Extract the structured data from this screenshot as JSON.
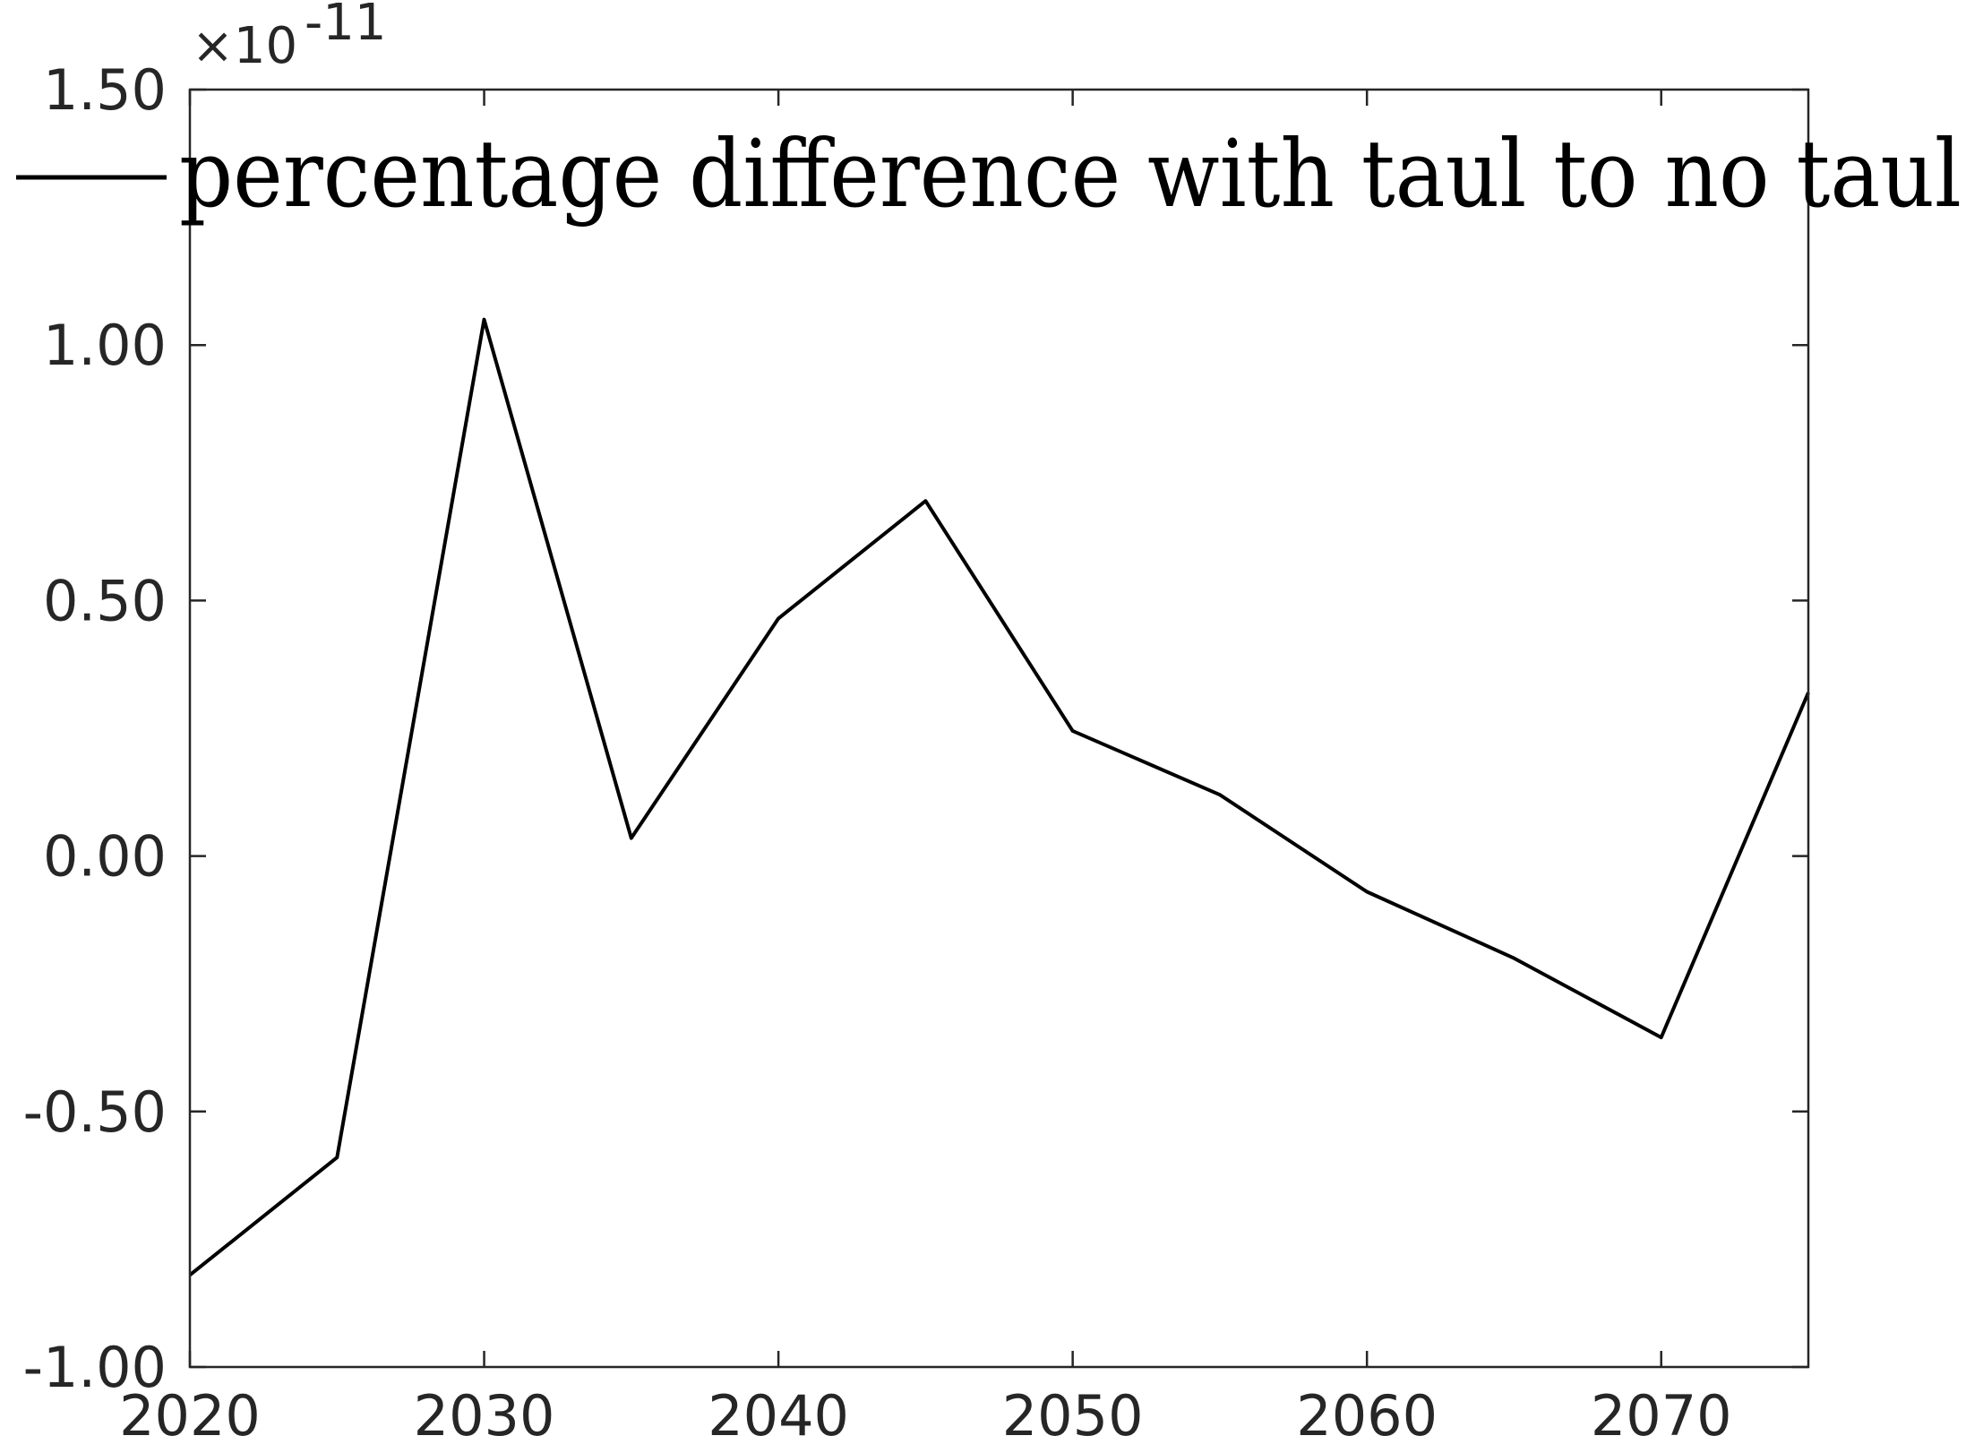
{
  "chart_data": {
    "type": "line",
    "title": "",
    "xlabel": "",
    "ylabel": "",
    "xlim": [
      2020,
      2075
    ],
    "ylim": [
      -1.0,
      1.5
    ],
    "y_multiplier_label": "×10",
    "y_multiplier_exponent": "-11",
    "x_ticks": [
      2020,
      2030,
      2040,
      2050,
      2060,
      2070
    ],
    "x_tick_labels": [
      "2020",
      "2030",
      "2040",
      "2050",
      "2060",
      "2070"
    ],
    "y_ticks": [
      -1.0,
      -0.5,
      0.0,
      0.5,
      1.0,
      1.5
    ],
    "y_tick_labels": [
      "-1.00",
      "-0.50",
      "0.00",
      "0.50",
      "1.00",
      "1.50"
    ],
    "grid": false,
    "legend_position": "top",
    "series": [
      {
        "name": "percentage difference with taul to no taul",
        "color": "#000000",
        "x": [
          2020,
          2025,
          2030,
          2035,
          2040,
          2045,
          2050,
          2055,
          2060,
          2065,
          2070,
          2075
        ],
        "y": [
          -0.82,
          -0.59,
          1.05,
          0.035,
          0.465,
          0.695,
          0.245,
          0.12,
          -0.07,
          -0.2,
          -0.355,
          0.32
        ]
      }
    ]
  }
}
